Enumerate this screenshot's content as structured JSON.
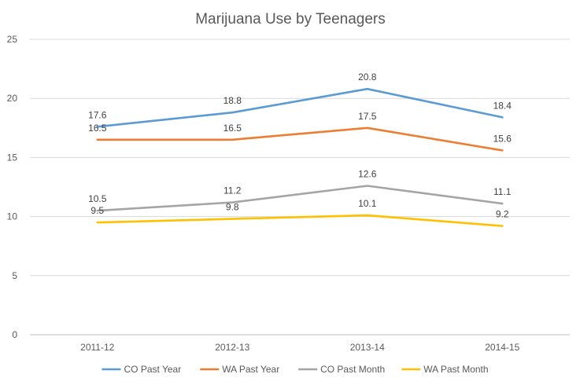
{
  "chart_data": {
    "type": "line",
    "title": "Marijuana Use by Teenagers",
    "xlabel": "",
    "ylabel": "",
    "categories": [
      "2011-12",
      "2012-13",
      "2013-14",
      "2014-15"
    ],
    "ylim": [
      0,
      25
    ],
    "yticks": [
      0,
      5,
      10,
      15,
      20,
      25
    ],
    "grid": true,
    "legend_position": "bottom",
    "series": [
      {
        "name": "CO Past Year",
        "color": "#5B9BD5",
        "values": [
          17.6,
          18.8,
          20.8,
          18.4
        ]
      },
      {
        "name": "WA Past Year",
        "color": "#ED7D31",
        "values": [
          16.5,
          16.5,
          17.5,
          15.6
        ]
      },
      {
        "name": "CO Past Month",
        "color": "#A5A5A5",
        "values": [
          10.5,
          11.2,
          12.6,
          11.1
        ]
      },
      {
        "name": "WA Past Month",
        "color": "#FFC000",
        "values": [
          9.5,
          9.8,
          10.1,
          9.2
        ]
      }
    ]
  }
}
